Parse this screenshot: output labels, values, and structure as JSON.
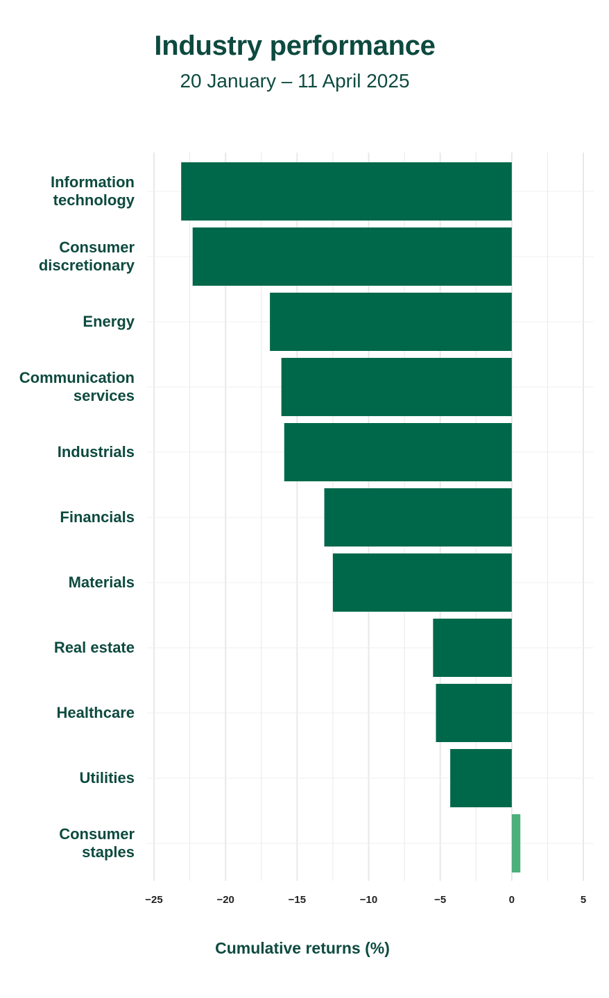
{
  "chart_data": {
    "type": "bar",
    "orientation": "horizontal",
    "title": "Industry performance",
    "subtitle": "20 January – 11 April 2025",
    "xlabel": "Cumulative returns (%)",
    "ylabel": "",
    "xlim": [
      -25,
      5
    ],
    "x_ticks": [
      -25,
      -20,
      -15,
      -10,
      -5,
      0,
      5
    ],
    "x_tick_labels": [
      "−25",
      "−20",
      "−15",
      "−10",
      "−5",
      "0",
      "5"
    ],
    "grid": true,
    "legend": "none",
    "categories": [
      [
        "Information",
        "technology"
      ],
      [
        "Consumer",
        "discretionary"
      ],
      [
        "Energy"
      ],
      [
        "Communication",
        "services"
      ],
      [
        "Industrials"
      ],
      [
        "Financials"
      ],
      [
        "Materials"
      ],
      [
        "Real estate"
      ],
      [
        "Healthcare"
      ],
      [
        "Utilities"
      ],
      [
        "Consumer",
        "staples"
      ]
    ],
    "values": [
      -23.1,
      -22.3,
      -16.9,
      -16.1,
      -15.9,
      -13.1,
      -12.5,
      -5.5,
      -5.3,
      -4.3,
      0.6
    ],
    "colors": {
      "negative": "#00684a",
      "positive": "#4daf7c",
      "grid": "#e8e8e8",
      "text": "#0d4a3f"
    }
  }
}
